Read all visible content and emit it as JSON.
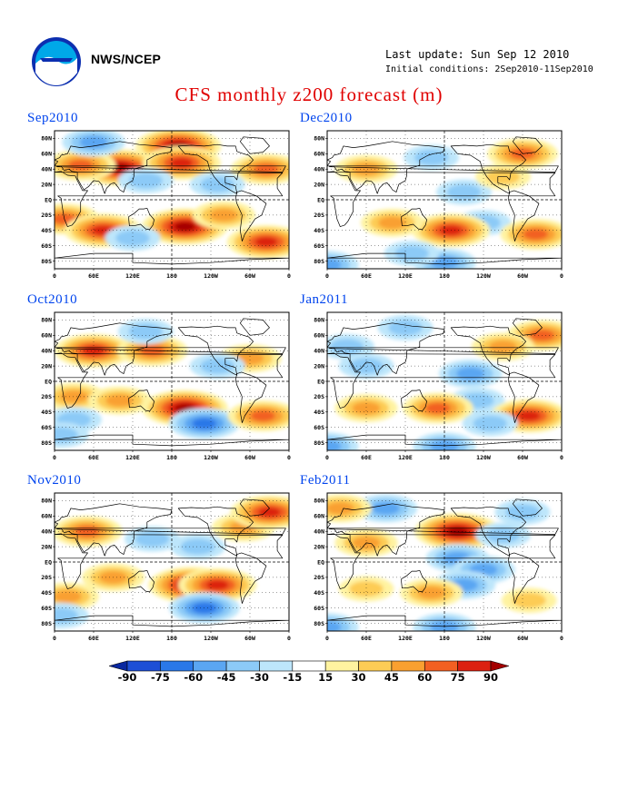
{
  "header": {
    "agency": "NWS/NCEP",
    "last_update": "Last update: Sun Sep 12 2010",
    "initial_conditions": "Initial conditions: 2Sep2010-11Sep2010",
    "title": "CFS monthly z200 forecast (m)"
  },
  "axes": {
    "lat_labels": [
      "80N",
      "60N",
      "40N",
      "20N",
      "EQ",
      "20S",
      "40S",
      "60S",
      "80S"
    ],
    "lon_labels": [
      "0",
      "60E",
      "120E",
      "180",
      "120W",
      "60W",
      "0"
    ]
  },
  "panels": [
    {
      "label": "Sep2010",
      "anoms": [
        {
          "lon": 100,
          "lat": 42,
          "v": 90
        },
        {
          "lon": 190,
          "lat": 70,
          "v": 90
        },
        {
          "lon": 195,
          "lat": 48,
          "v": 75
        },
        {
          "lon": 40,
          "lat": 45,
          "v": 60
        },
        {
          "lon": 325,
          "lat": 40,
          "v": 60
        },
        {
          "lon": 250,
          "lat": 20,
          "v": -30
        },
        {
          "lon": 15,
          "lat": -25,
          "v": 60
        },
        {
          "lon": 75,
          "lat": -40,
          "v": 75
        },
        {
          "lon": 200,
          "lat": -35,
          "v": 90
        },
        {
          "lon": 325,
          "lat": -55,
          "v": 75
        },
        {
          "lon": 140,
          "lat": 25,
          "v": -30
        },
        {
          "lon": 60,
          "lat": 75,
          "v": -45
        },
        {
          "lon": 260,
          "lat": -20,
          "v": 45
        },
        {
          "lon": 120,
          "lat": -50,
          "v": -30
        }
      ]
    },
    {
      "label": "Dec2010",
      "anoms": [
        {
          "lon": 210,
          "lat": 10,
          "v": -30
        },
        {
          "lon": 240,
          "lat": -30,
          "v": -30
        },
        {
          "lon": 190,
          "lat": -40,
          "v": 75
        },
        {
          "lon": 320,
          "lat": -45,
          "v": 60
        },
        {
          "lon": 60,
          "lat": 40,
          "v": 45
        },
        {
          "lon": 300,
          "lat": 60,
          "v": 60
        },
        {
          "lon": 160,
          "lat": 55,
          "v": -30
        },
        {
          "lon": 0,
          "lat": -85,
          "v": -45
        },
        {
          "lon": 180,
          "lat": -82,
          "v": -45
        },
        {
          "lon": 100,
          "lat": -30,
          "v": 45
        },
        {
          "lon": 270,
          "lat": 30,
          "v": 30
        },
        {
          "lon": 130,
          "lat": -70,
          "v": -30
        }
      ]
    },
    {
      "label": "Oct2010",
      "anoms": [
        {
          "lon": 60,
          "lat": 40,
          "v": 75
        },
        {
          "lon": 150,
          "lat": 40,
          "v": 60
        },
        {
          "lon": 300,
          "lat": 30,
          "v": 45
        },
        {
          "lon": 200,
          "lat": -35,
          "v": 90
        },
        {
          "lon": 230,
          "lat": -55,
          "v": -60
        },
        {
          "lon": 320,
          "lat": -45,
          "v": 60
        },
        {
          "lon": 30,
          "lat": -20,
          "v": 45
        },
        {
          "lon": 100,
          "lat": -25,
          "v": 45
        },
        {
          "lon": 140,
          "lat": 65,
          "v": -30
        },
        {
          "lon": 30,
          "lat": -50,
          "v": -30
        },
        {
          "lon": 250,
          "lat": 20,
          "v": -30
        },
        {
          "lon": 10,
          "lat": -70,
          "v": -30
        }
      ]
    },
    {
      "label": "Jan2011",
      "anoms": [
        {
          "lon": 220,
          "lat": 10,
          "v": -45
        },
        {
          "lon": 230,
          "lat": -25,
          "v": -30
        },
        {
          "lon": 60,
          "lat": 20,
          "v": -30
        },
        {
          "lon": 120,
          "lat": 70,
          "v": -30
        },
        {
          "lon": 330,
          "lat": 60,
          "v": 60
        },
        {
          "lon": 310,
          "lat": -45,
          "v": 75
        },
        {
          "lon": 170,
          "lat": -35,
          "v": 60
        },
        {
          "lon": 60,
          "lat": -35,
          "v": 45
        },
        {
          "lon": 0,
          "lat": -85,
          "v": -45
        },
        {
          "lon": 180,
          "lat": -85,
          "v": -45
        },
        {
          "lon": 270,
          "lat": 45,
          "v": 45
        },
        {
          "lon": 30,
          "lat": 45,
          "v": -30
        },
        {
          "lon": 250,
          "lat": -55,
          "v": -30
        }
      ]
    },
    {
      "label": "Nov2010",
      "anoms": [
        {
          "lon": 50,
          "lat": 40,
          "v": 60
        },
        {
          "lon": 290,
          "lat": 45,
          "v": 45
        },
        {
          "lon": 330,
          "lat": 65,
          "v": 75
        },
        {
          "lon": 210,
          "lat": -30,
          "v": 90
        },
        {
          "lon": 250,
          "lat": -30,
          "v": 75
        },
        {
          "lon": 90,
          "lat": -20,
          "v": 45
        },
        {
          "lon": 230,
          "lat": -60,
          "v": -60
        },
        {
          "lon": 150,
          "lat": 30,
          "v": -30
        },
        {
          "lon": 220,
          "lat": 20,
          "v": -30
        },
        {
          "lon": 20,
          "lat": -45,
          "v": 45
        },
        {
          "lon": 10,
          "lat": -70,
          "v": -30
        }
      ]
    },
    {
      "label": "Feb2011",
      "anoms": [
        {
          "lon": 200,
          "lat": 40,
          "v": 90
        },
        {
          "lon": 200,
          "lat": 5,
          "v": -45
        },
        {
          "lon": 240,
          "lat": -10,
          "v": -45
        },
        {
          "lon": 210,
          "lat": -30,
          "v": -45
        },
        {
          "lon": 90,
          "lat": 70,
          "v": -45
        },
        {
          "lon": 60,
          "lat": 25,
          "v": 45
        },
        {
          "lon": 160,
          "lat": -40,
          "v": 45
        },
        {
          "lon": 60,
          "lat": -35,
          "v": 30
        },
        {
          "lon": 0,
          "lat": -85,
          "v": -45
        },
        {
          "lon": 180,
          "lat": -85,
          "v": -45
        },
        {
          "lon": 310,
          "lat": -50,
          "v": 30
        },
        {
          "lon": 300,
          "lat": 65,
          "v": -30
        },
        {
          "lon": 270,
          "lat": 35,
          "v": -30
        },
        {
          "lon": 20,
          "lat": 70,
          "v": 45
        }
      ]
    }
  ],
  "colorbar": {
    "labels": [
      "-90",
      "-75",
      "-60",
      "-45",
      "-30",
      "-15",
      "15",
      "30",
      "45",
      "60",
      "75",
      "90"
    ],
    "colors": [
      "#0a28a0",
      "#1e4fd6",
      "#2a78e8",
      "#5aa6f2",
      "#8ccaf7",
      "#bde6fb",
      "#ffffff",
      "#fff3a0",
      "#fdcc55",
      "#f9a030",
      "#f26022",
      "#dc2010",
      "#a40000"
    ]
  }
}
